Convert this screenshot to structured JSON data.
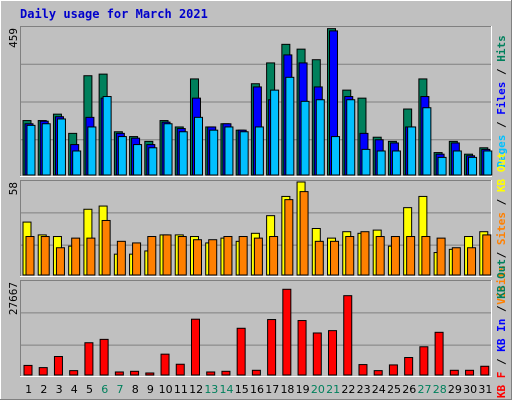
{
  "title": "Daily usage for March 2021",
  "colors": {
    "background": "#c0c0c0",
    "hits": "#00805c",
    "files": "#0000ff",
    "pages": "#00c0ff",
    "visits": "#ffff00",
    "sites": "#ff8000",
    "kbin": "#0000ff",
    "kbout": "#00805c",
    "kbf": "#ff0000",
    "weekday": "#000000",
    "weekend": "#00805c"
  },
  "chart_data": [
    {
      "type": "bar",
      "panel": "hits-files-pages",
      "ymax_label": "459",
      "ylim": [
        0,
        459
      ],
      "right_label": [
        "Pages",
        "Files",
        "Hits"
      ],
      "categories": [
        "1",
        "2",
        "3",
        "4",
        "5",
        "6",
        "7",
        "8",
        "9",
        "10",
        "11",
        "12",
        "13",
        "14",
        "15",
        "16",
        "17",
        "18",
        "19",
        "20",
        "21",
        "22",
        "23",
        "24",
        "25",
        "26",
        "27",
        "28",
        "29",
        "30",
        "31"
      ],
      "series": [
        {
          "name": "Hits",
          "values": [
            170,
            170,
            190,
            130,
            310,
            315,
            135,
            120,
            105,
            170,
            150,
            300,
            150,
            160,
            140,
            285,
            350,
            408,
            393,
            360,
            457,
            265,
            240,
            118,
            105,
            206,
            300,
            70,
            105,
            65,
            85
          ]
        },
        {
          "name": "Files",
          "values": [
            160,
            168,
            182,
            95,
            180,
            240,
            130,
            115,
            95,
            165,
            145,
            240,
            150,
            160,
            140,
            275,
            235,
            375,
            350,
            275,
            450,
            245,
            130,
            110,
            100,
            150,
            245,
            65,
            100,
            60,
            80
          ]
        },
        {
          "name": "Pages",
          "values": [
            155,
            160,
            175,
            75,
            150,
            245,
            120,
            95,
            85,
            160,
            135,
            180,
            140,
            150,
            135,
            150,
            265,
            305,
            230,
            235,
            120,
            235,
            80,
            75,
            75,
            150,
            210,
            55,
            75,
            55,
            75
          ]
        }
      ]
    },
    {
      "type": "bar",
      "panel": "visits-sites",
      "ymax_label": "58",
      "ylim": [
        0,
        58
      ],
      "right_label": [
        "Visits",
        "Sites",
        "KB Out"
      ],
      "series": [
        {
          "name": "Visits",
          "values": [
            33,
            25,
            24,
            18,
            41,
            43,
            13,
            13,
            15,
            25,
            25,
            24,
            20,
            23,
            21,
            26,
            37,
            49,
            58,
            29,
            23,
            27,
            26,
            28,
            18,
            42,
            49,
            14,
            16,
            24,
            27
          ]
        },
        {
          "name": "Sites",
          "values": [
            24,
            24,
            17,
            23,
            23,
            34,
            21,
            20,
            24,
            25,
            24,
            22,
            22,
            24,
            24,
            23,
            24,
            47,
            52,
            21,
            21,
            24,
            27,
            24,
            24,
            24,
            24,
            23,
            17,
            17,
            25
          ]
        }
      ]
    },
    {
      "type": "bar",
      "panel": "kbytes",
      "ymax_label": "27667",
      "ylim": [
        0,
        27667
      ],
      "right_label": [
        "KB F",
        "KB In",
        "KB Out"
      ],
      "series": [
        {
          "name": "KB F",
          "values": [
            2850,
            2200,
            5500,
            1300,
            9600,
            10600,
            900,
            1100,
            600,
            6200,
            3200,
            16600,
            900,
            1100,
            13900,
            1400,
            16500,
            25500,
            16200,
            12500,
            13200,
            23600,
            3100,
            1300,
            3000,
            5200,
            8400,
            12700,
            1400,
            1400,
            2600
          ]
        }
      ]
    }
  ],
  "axis": {
    "days": [
      "1",
      "2",
      "3",
      "4",
      "5",
      "6",
      "7",
      "8",
      "9",
      "10",
      "11",
      "12",
      "13",
      "14",
      "15",
      "16",
      "17",
      "18",
      "19",
      "20",
      "21",
      "22",
      "23",
      "24",
      "25",
      "26",
      "27",
      "28",
      "29",
      "30",
      "31"
    ],
    "weekend": [
      6,
      7,
      13,
      14,
      20,
      21,
      27,
      28
    ]
  }
}
